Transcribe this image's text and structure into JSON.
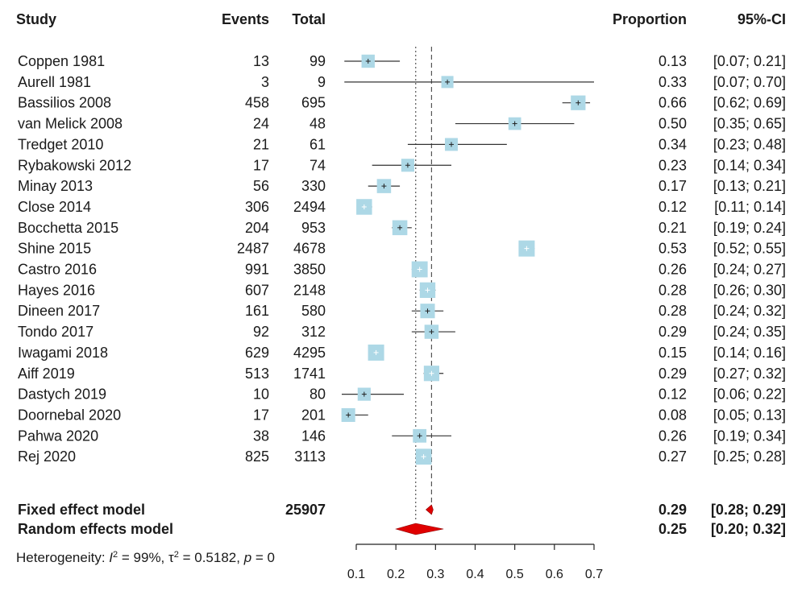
{
  "chart_data": {
    "type": "forest",
    "headers": {
      "study": "Study",
      "events": "Events",
      "total": "Total",
      "proportion": "Proportion",
      "ci": "95%-CI"
    },
    "studies": [
      {
        "name": "Coppen 1981",
        "events": "13",
        "total": "99",
        "estimate": 0.13,
        "lower": 0.07,
        "upper": 0.21,
        "prop_label": "0.13",
        "ci_label": "[0.07; 0.21]"
      },
      {
        "name": "Aurell 1981",
        "events": "3",
        "total": "9",
        "estimate": 0.33,
        "lower": 0.07,
        "upper": 0.7,
        "prop_label": "0.33",
        "ci_label": "[0.07; 0.70]"
      },
      {
        "name": "Bassilios 2008",
        "events": "458",
        "total": "695",
        "estimate": 0.66,
        "lower": 0.62,
        "upper": 0.69,
        "prop_label": "0.66",
        "ci_label": "[0.62; 0.69]"
      },
      {
        "name": "van Melick 2008",
        "events": "24",
        "total": "48",
        "estimate": 0.5,
        "lower": 0.35,
        "upper": 0.65,
        "prop_label": "0.50",
        "ci_label": "[0.35; 0.65]"
      },
      {
        "name": "Tredget 2010",
        "events": "21",
        "total": "61",
        "estimate": 0.34,
        "lower": 0.23,
        "upper": 0.48,
        "prop_label": "0.34",
        "ci_label": "[0.23; 0.48]"
      },
      {
        "name": "Rybakowski 2012",
        "events": "17",
        "total": "74",
        "estimate": 0.23,
        "lower": 0.14,
        "upper": 0.34,
        "prop_label": "0.23",
        "ci_label": "[0.14; 0.34]"
      },
      {
        "name": "Minay 2013",
        "events": "56",
        "total": "330",
        "estimate": 0.17,
        "lower": 0.13,
        "upper": 0.21,
        "prop_label": "0.17",
        "ci_label": "[0.13; 0.21]"
      },
      {
        "name": "Close 2014",
        "events": "306",
        "total": "2494",
        "estimate": 0.12,
        "lower": 0.11,
        "upper": 0.14,
        "prop_label": "0.12",
        "ci_label": "[0.11; 0.14]"
      },
      {
        "name": "Bocchetta 2015",
        "events": "204",
        "total": "953",
        "estimate": 0.21,
        "lower": 0.19,
        "upper": 0.24,
        "prop_label": "0.21",
        "ci_label": "[0.19; 0.24]"
      },
      {
        "name": "Shine 2015",
        "events": "2487",
        "total": "4678",
        "estimate": 0.53,
        "lower": 0.52,
        "upper": 0.55,
        "prop_label": "0.53",
        "ci_label": "[0.52; 0.55]"
      },
      {
        "name": "Castro 2016",
        "events": "991",
        "total": "3850",
        "estimate": 0.26,
        "lower": 0.24,
        "upper": 0.27,
        "prop_label": "0.26",
        "ci_label": "[0.24; 0.27]"
      },
      {
        "name": "Hayes 2016",
        "events": "607",
        "total": "2148",
        "estimate": 0.28,
        "lower": 0.26,
        "upper": 0.3,
        "prop_label": "0.28",
        "ci_label": "[0.26; 0.30]"
      },
      {
        "name": "Dineen 2017",
        "events": "161",
        "total": "580",
        "estimate": 0.28,
        "lower": 0.24,
        "upper": 0.32,
        "prop_label": "0.28",
        "ci_label": "[0.24; 0.32]"
      },
      {
        "name": "Tondo 2017",
        "events": "92",
        "total": "312",
        "estimate": 0.29,
        "lower": 0.24,
        "upper": 0.35,
        "prop_label": "0.29",
        "ci_label": "[0.24; 0.35]"
      },
      {
        "name": "Iwagami 2018",
        "events": "629",
        "total": "4295",
        "estimate": 0.15,
        "lower": 0.14,
        "upper": 0.16,
        "prop_label": "0.15",
        "ci_label": "[0.14; 0.16]"
      },
      {
        "name": "Aiff 2019",
        "events": "513",
        "total": "1741",
        "estimate": 0.29,
        "lower": 0.27,
        "upper": 0.32,
        "prop_label": "0.29",
        "ci_label": "[0.27; 0.32]"
      },
      {
        "name": "Dastych 2019",
        "events": "10",
        "total": "80",
        "estimate": 0.12,
        "lower": 0.06,
        "upper": 0.22,
        "prop_label": "0.12",
        "ci_label": "[0.06; 0.22]"
      },
      {
        "name": "Doornebal 2020",
        "events": "17",
        "total": "201",
        "estimate": 0.08,
        "lower": 0.05,
        "upper": 0.13,
        "prop_label": "0.08",
        "ci_label": "[0.05; 0.13]"
      },
      {
        "name": "Pahwa 2020",
        "events": "38",
        "total": "146",
        "estimate": 0.26,
        "lower": 0.19,
        "upper": 0.34,
        "prop_label": "0.26",
        "ci_label": "[0.19; 0.34]"
      },
      {
        "name": "Rej 2020",
        "events": "825",
        "total": "3113",
        "estimate": 0.27,
        "lower": 0.25,
        "upper": 0.28,
        "prop_label": "0.27",
        "ci_label": "[0.25; 0.28]"
      }
    ],
    "fixed": {
      "name": "Fixed effect model",
      "total": "25907",
      "estimate": 0.29,
      "lower": 0.28,
      "upper": 0.29,
      "prop_label": "0.29",
      "ci_label": "[0.28; 0.29]"
    },
    "random": {
      "name": "Random effects model",
      "estimate": 0.25,
      "lower": 0.2,
      "upper": 0.32,
      "prop_label": "0.25",
      "ci_label": "[0.20; 0.32]"
    },
    "heterogeneity": {
      "prefix": "Heterogeneity: ",
      "i2_symbol": "I",
      "i2_text": " = 99%, ",
      "tau_symbol": "τ",
      "tau_text": " = 0.5182, ",
      "p_symbol": "p",
      "p_text": " = 0"
    },
    "x_ticks": [
      0.1,
      0.2,
      0.3,
      0.4,
      0.5,
      0.6,
      0.7
    ],
    "x_tick_labels": [
      "0.1",
      "0.2",
      "0.3",
      "0.4",
      "0.5",
      "0.6",
      "0.7"
    ],
    "xlim": [
      0.1,
      0.7
    ],
    "colors": {
      "box": "#add8e6",
      "diamond": "#e00000",
      "line": "#333333"
    }
  }
}
